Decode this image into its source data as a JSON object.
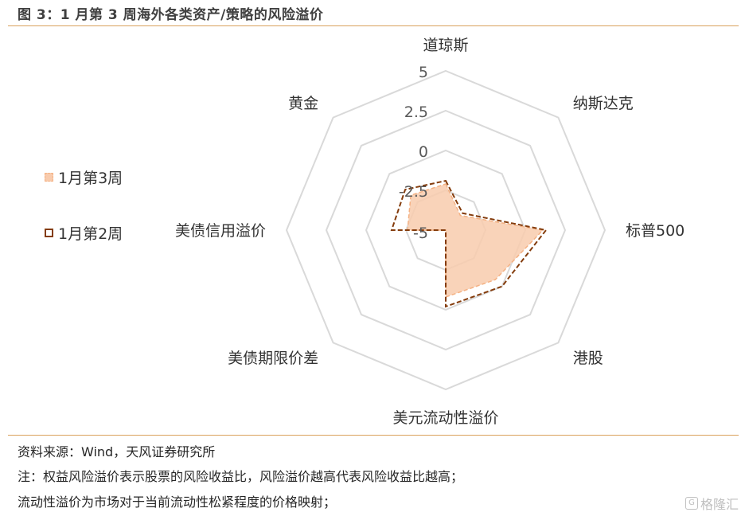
{
  "title": "图 3：1 月第 3 周海外各类资产/策略的风险溢价",
  "chart_data": {
    "type": "radar",
    "axes": [
      "道琼斯",
      "纳斯达克",
      "标普500",
      "港股",
      "美元流动性溢价",
      "美债期限价差",
      "美债信用溢价",
      "黄金"
    ],
    "range": [
      -5,
      5
    ],
    "ticks": [
      5,
      2.5,
      0,
      -2.5,
      -5
    ],
    "tick_labels": [
      "5",
      "2.5",
      "0",
      "-2.5",
      "-5"
    ],
    "series": [
      {
        "name": "1月第3周",
        "values": [
          -2.1,
          -3.7,
          1.1,
          -0.6,
          -0.8,
          -5,
          -2.6,
          -1.9
        ],
        "color": "#F8CBAD",
        "stroke": "#F4B183"
      },
      {
        "name": "1月第2周",
        "values": [
          -1.9,
          -3.5,
          1.3,
          0.0,
          -0.2,
          -5,
          -1.6,
          -1.4
        ],
        "color": "#843C0C"
      }
    ],
    "grid_color": "#D9D9D9"
  },
  "footnotes": [
    "资料来源：Wind，天风证券研究所",
    "注：权益风险溢价表示股票的风险收益比，风险溢价越高代表风险收益比越高；",
    "流动性溢价为市场对于当前流动性松紧程度的价格映射；"
  ],
  "watermark": "格隆汇"
}
